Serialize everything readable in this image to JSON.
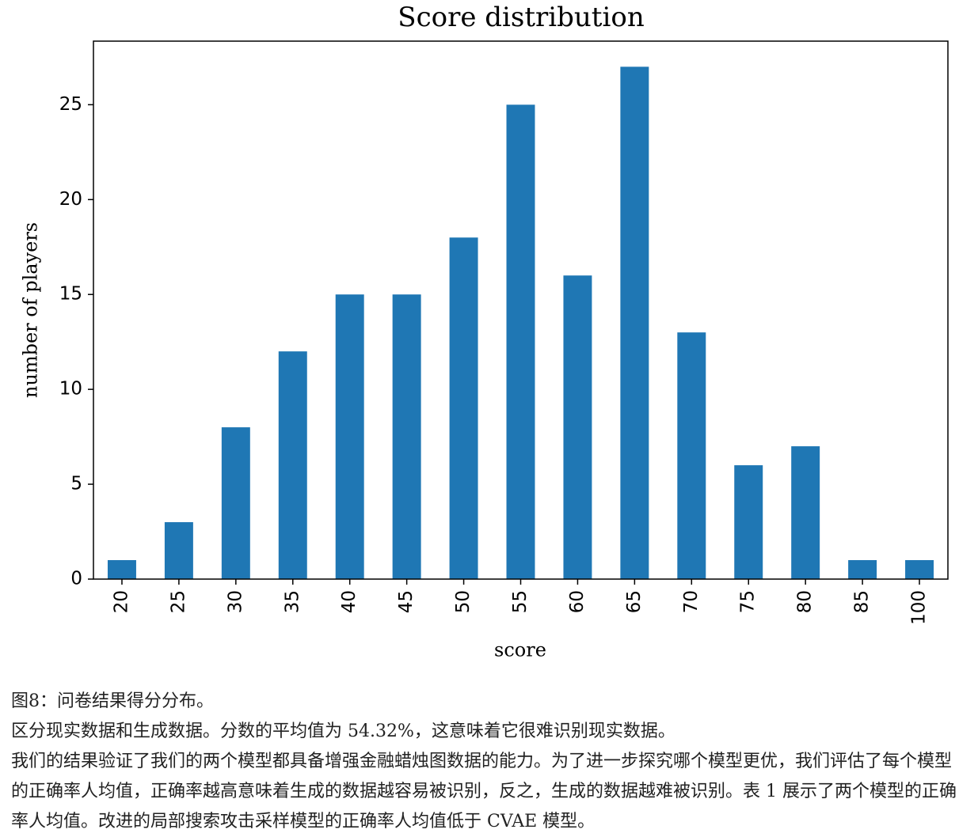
{
  "chart_data": {
    "type": "bar",
    "title": "Score distribution",
    "x_label": "score",
    "y_label": "number of players",
    "categories": [
      "20",
      "25",
      "30",
      "35",
      "40",
      "45",
      "50",
      "55",
      "60",
      "65",
      "70",
      "75",
      "80",
      "85",
      "100"
    ],
    "values": [
      1,
      3,
      8,
      12,
      15,
      15,
      18,
      25,
      16,
      27,
      13,
      6,
      7,
      1,
      1
    ],
    "color": "#1f77b4",
    "ylim": [
      0,
      28.35
    ],
    "yticks": [
      0,
      5,
      10,
      15,
      20,
      25
    ],
    "grid": false
  },
  "caption": [
    "图8：问卷结果得分分布。",
    "区分现实数据和生成数据。分数的平均值为 54.32%，这意味着它很难识别现实数据。",
    "我们的结果验证了我们的两个模型都具备增强金融蜡烛图数据的能力。为了进一步探究哪个模型更优，我们评估了每个模型的正确率人均值，正确率越高意味着生成的数据越容易被识别，反之，生成的数据越难被识别。表 1 展示了两个模型的正确率人均值。改进的局部搜索攻击采样模型的正确率人均值低于 CVAE 模型。"
  ]
}
